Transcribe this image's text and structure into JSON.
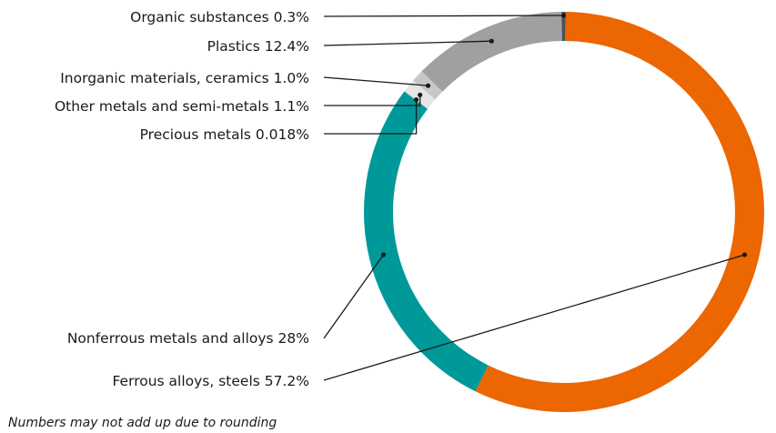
{
  "chart_data": {
    "type": "pie",
    "variant": "donut",
    "categories": [
      "Ferrous alloys, steels",
      "Nonferrous metals and alloys",
      "Precious metals",
      "Other metals and semi-metals",
      "Inorganic materials, ceramics",
      "Plastics",
      "Organic substances"
    ],
    "values": [
      57.2,
      28,
      0.018,
      1.1,
      1.0,
      12.4,
      0.3
    ],
    "value_labels": [
      "57.2%",
      "28%",
      "0.018%",
      "1.1%",
      "1.0%",
      "12.4%",
      "0.3%"
    ],
    "colors": [
      "#ec6602",
      "#009999",
      "#cccccc",
      "#e6e6e6",
      "#c8c8c8",
      "#a0a0a0",
      "#4a5255"
    ],
    "legend": "callout labels on left",
    "footnote": "Numbers may not add up due to rounding"
  }
}
